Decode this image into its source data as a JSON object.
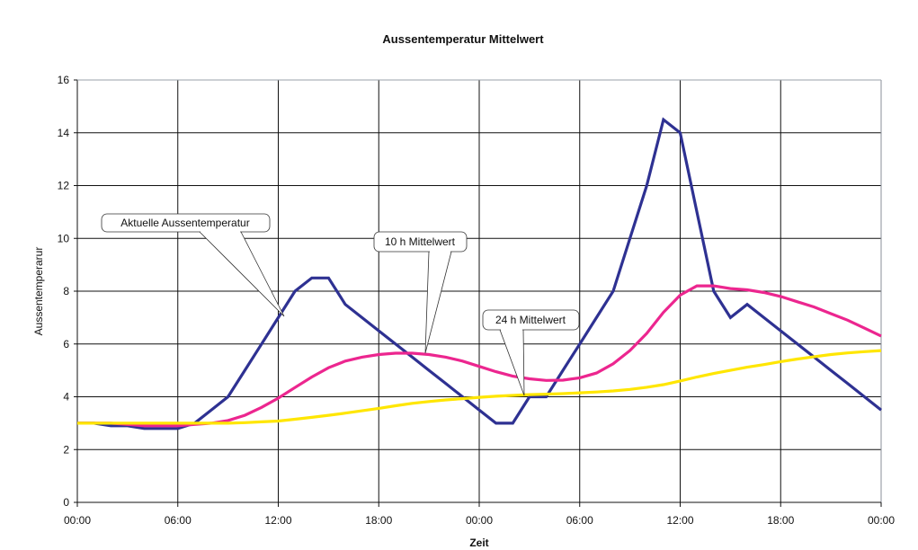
{
  "chart_data": {
    "type": "line",
    "title": "Aussentemperatur Mittelwert",
    "xlabel": "Zeit",
    "ylabel": "Aussentemperarur",
    "ylim": [
      0,
      16
    ],
    "yticks": [
      0,
      2,
      4,
      6,
      8,
      10,
      12,
      14,
      16
    ],
    "xlim_hours": [
      0,
      48
    ],
    "xtick_labels": [
      "00:00",
      "06:00",
      "12:00",
      "18:00",
      "00:00",
      "06:00",
      "12:00",
      "18:00",
      "00:00"
    ],
    "grid": true,
    "legend": "none (callout labels)",
    "x_hours": [
      0,
      1,
      2,
      3,
      4,
      5,
      6,
      7,
      8,
      9,
      10,
      11,
      12,
      13,
      14,
      15,
      16,
      17,
      18,
      19,
      20,
      21,
      22,
      23,
      24,
      25,
      26,
      27,
      28,
      29,
      30,
      31,
      32,
      33,
      34,
      35,
      36,
      37,
      38,
      39,
      40,
      41,
      42,
      43,
      44,
      45,
      46,
      47,
      48
    ],
    "series": [
      {
        "name": "Aktuelle Aussentemperatur",
        "color": "#2E3192",
        "values": [
          3,
          3,
          2.9,
          2.9,
          2.8,
          2.8,
          2.8,
          3,
          3.5,
          4,
          5,
          6,
          7,
          8,
          8.5,
          8.5,
          7.5,
          7,
          6.5,
          6,
          5.5,
          5,
          4.5,
          4,
          3.5,
          3,
          3,
          4,
          4,
          5,
          6,
          7,
          8,
          10,
          12,
          14.5,
          14,
          11,
          8,
          7,
          7.5,
          7,
          6.5,
          6,
          5.5,
          5,
          4.5,
          4,
          3.5
        ]
      },
      {
        "name": "10 h Mittelwert",
        "color": "#EC268F",
        "values": [
          3,
          3,
          3,
          2.95,
          2.9,
          2.9,
          2.9,
          2.95,
          3.0,
          3.1,
          3.3,
          3.6,
          3.95,
          4.35,
          4.75,
          5.1,
          5.35,
          5.5,
          5.6,
          5.65,
          5.65,
          5.6,
          5.5,
          5.35,
          5.15,
          4.95,
          4.78,
          4.68,
          4.62,
          4.63,
          4.72,
          4.9,
          5.25,
          5.75,
          6.4,
          7.2,
          7.85,
          8.2,
          8.2,
          8.1,
          8.05,
          7.95,
          7.8,
          7.6,
          7.4,
          7.15,
          6.9,
          6.6,
          6.3
        ]
      },
      {
        "name": "24 h Mittelwert",
        "color": "#FFE600",
        "values": [
          3,
          3,
          3,
          3,
          3,
          3,
          3,
          3,
          3,
          3,
          3.02,
          3.05,
          3.08,
          3.15,
          3.22,
          3.3,
          3.38,
          3.47,
          3.56,
          3.66,
          3.75,
          3.82,
          3.88,
          3.93,
          3.98,
          4.02,
          4.05,
          4.08,
          4.1,
          4.12,
          4.15,
          4.18,
          4.22,
          4.28,
          4.36,
          4.46,
          4.6,
          4.75,
          4.88,
          5.0,
          5.12,
          5.22,
          5.33,
          5.43,
          5.52,
          5.6,
          5.66,
          5.71,
          5.75
        ]
      }
    ],
    "annotations": [
      {
        "text": "Aktuelle Aussentemperatur",
        "points_to_hour": 12.3,
        "points_to_value": 7.0
      },
      {
        "text": "10 h Mittelwert",
        "points_to_hour": 20.5,
        "points_to_value": 5.65
      },
      {
        "text": "24 h Mittelwert",
        "points_to_hour": 26.7,
        "points_to_value": 4.05
      }
    ]
  },
  "labels": {
    "title": "Aussentemperatur Mittelwert",
    "xlabel": "Zeit",
    "ylabel": "Aussentemperarur",
    "callout_actual": "Aktuelle Aussentemperatur",
    "callout_10h": "10 h Mittelwert",
    "callout_24h": "24 h Mittelwert"
  }
}
